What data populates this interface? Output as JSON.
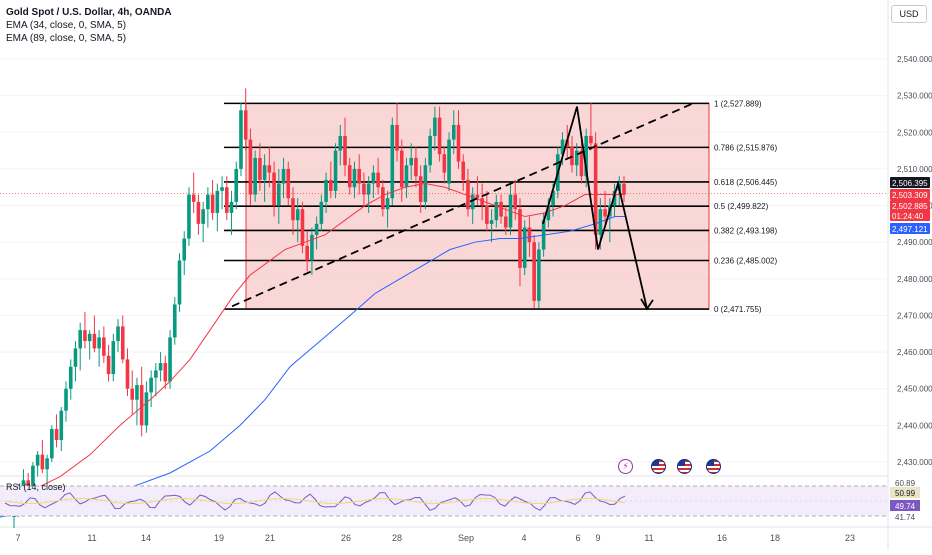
{
  "header": {
    "title": "Gold Spot / U.S. Dollar, 4h, OANDA",
    "ema1": "EMA (34, close, 0, SMA, 5)",
    "ema2": "EMA (89, close, 0, SMA, 5)",
    "currency_button": "USD"
  },
  "rsi": {
    "label": "RSI (14, close)"
  },
  "events": [
    {
      "icon": "lightning-icon",
      "glyph": "⚡"
    },
    {
      "icon": "us-flag-icon"
    },
    {
      "icon": "us-flag-icon"
    },
    {
      "icon": "us-flag-icon"
    }
  ],
  "chart_data": {
    "type": "candlestick",
    "symbol": "Gold Spot / U.S. Dollar",
    "timeframe": "4h",
    "price_axis": {
      "min": 2428,
      "max": 2550,
      "ticks": [
        2430,
        2440,
        2450,
        2460,
        2470,
        2480,
        2490,
        2500,
        2510,
        2520,
        2530,
        2540
      ],
      "tick_labels": [
        "2,430.000",
        "2,440.000",
        "2,450.000",
        "2,460.000",
        "2,470.000",
        "2,480.000",
        "2,490.000",
        "2,500.000",
        "2,510.000",
        "2,520.000",
        "2,530.000",
        "2,540.000"
      ]
    },
    "time_axis": {
      "labels": [
        "7",
        "11",
        "14",
        "19",
        "21",
        "26",
        "28",
        "Sep",
        "4",
        "6",
        "9",
        "11",
        "16",
        "18",
        "23"
      ]
    },
    "price_badges": [
      {
        "value": "2,506.395",
        "color": "#131722"
      },
      {
        "value": "2,503.309",
        "color": "#f23645"
      },
      {
        "value": "2,502.885",
        "color": "#f23645"
      },
      {
        "value": "01:24:40",
        "color": "#f23645"
      },
      {
        "value": "2,497.121",
        "color": "#2962ff"
      }
    ],
    "fibonacci": {
      "levels": [
        {
          "ratio": "1",
          "price": 2527.889,
          "label": "1 (2,527.889)"
        },
        {
          "ratio": "0.786",
          "price": 2515.876,
          "label": "0.786 (2,515.876)"
        },
        {
          "ratio": "0.618",
          "price": 2506.445,
          "label": "0.618 (2,506.445)"
        },
        {
          "ratio": "0.5",
          "price": 2499.822,
          "label": "0.5 (2,499.822)"
        },
        {
          "ratio": "0.382",
          "price": 2493.198,
          "label": "0.382 (2,493.198)"
        },
        {
          "ratio": "0.236",
          "price": 2485.002,
          "label": "0.236 (2,485.002)"
        },
        {
          "ratio": "0",
          "price": 2471.755,
          "label": "0 (2,471.755)"
        }
      ],
      "fill_color": "#f8c9c9",
      "border_color": "#e53935"
    },
    "series": [
      {
        "name": "EMA (34, close, 0, SMA, 5)",
        "color": "#f23645",
        "points": [
          [
            0,
            2420
          ],
          [
            30,
            2422
          ],
          [
            60,
            2426
          ],
          [
            90,
            2432
          ],
          [
            120,
            2440
          ],
          [
            150,
            2447
          ],
          [
            170,
            2452
          ],
          [
            190,
            2458
          ],
          [
            205,
            2464
          ],
          [
            220,
            2470
          ],
          [
            235,
            2476
          ],
          [
            250,
            2481
          ],
          [
            265,
            2484
          ],
          [
            285,
            2488
          ],
          [
            305,
            2490
          ],
          [
            325,
            2492
          ],
          [
            345,
            2496
          ],
          [
            365,
            2500
          ],
          [
            385,
            2503
          ],
          [
            405,
            2505
          ],
          [
            425,
            2506
          ],
          [
            445,
            2505
          ],
          [
            465,
            2503
          ],
          [
            485,
            2501
          ],
          [
            505,
            2499
          ],
          [
            525,
            2497
          ],
          [
            545,
            2498
          ],
          [
            565,
            2500
          ],
          [
            585,
            2503
          ],
          [
            605,
            2503
          ],
          [
            625,
            2503
          ]
        ]
      },
      {
        "name": "EMA (89, close, 0, SMA, 5)",
        "color": "#2962ff",
        "points": [
          [
            0,
            2415
          ],
          [
            60,
            2418
          ],
          [
            120,
            2422
          ],
          [
            170,
            2427
          ],
          [
            210,
            2433
          ],
          [
            240,
            2440
          ],
          [
            265,
            2447
          ],
          [
            290,
            2456
          ],
          [
            320,
            2463
          ],
          [
            350,
            2470
          ],
          [
            375,
            2476
          ],
          [
            400,
            2480
          ],
          [
            425,
            2484
          ],
          [
            450,
            2488
          ],
          [
            475,
            2490
          ],
          [
            500,
            2491
          ],
          [
            520,
            2491
          ],
          [
            545,
            2492
          ],
          [
            570,
            2493
          ],
          [
            595,
            2495
          ],
          [
            615,
            2497
          ],
          [
            625,
            2497
          ]
        ]
      }
    ],
    "ohlc": [
      [
        2415,
        2419,
        2412,
        2418
      ],
      [
        2418,
        2424,
        2415,
        2423
      ],
      [
        2423,
        2428,
        2419,
        2425
      ],
      [
        2425,
        2427,
        2420,
        2421
      ],
      [
        2421,
        2430,
        2419,
        2429
      ],
      [
        2429,
        2433,
        2426,
        2432
      ],
      [
        2432,
        2436,
        2427,
        2428
      ],
      [
        2428,
        2432,
        2424,
        2431
      ],
      [
        2431,
        2440,
        2430,
        2439
      ],
      [
        2439,
        2443,
        2434,
        2436
      ],
      [
        2436,
        2445,
        2433,
        2444
      ],
      [
        2444,
        2452,
        2441,
        2450
      ],
      [
        2450,
        2458,
        2447,
        2456
      ],
      [
        2456,
        2463,
        2452,
        2461
      ],
      [
        2461,
        2468,
        2455,
        2466
      ],
      [
        2466,
        2471,
        2461,
        2463
      ],
      [
        2463,
        2466,
        2458,
        2465
      ],
      [
        2465,
        2470,
        2460,
        2461
      ],
      [
        2461,
        2466,
        2456,
        2464
      ],
      [
        2464,
        2467,
        2457,
        2459
      ],
      [
        2459,
        2462,
        2452,
        2454
      ],
      [
        2454,
        2465,
        2452,
        2463
      ],
      [
        2463,
        2469,
        2460,
        2467
      ],
      [
        2467,
        2470,
        2457,
        2458
      ],
      [
        2458,
        2461,
        2448,
        2450
      ],
      [
        2450,
        2455,
        2443,
        2447
      ],
      [
        2447,
        2453,
        2440,
        2451
      ],
      [
        2451,
        2456,
        2437,
        2440
      ],
      [
        2440,
        2452,
        2438,
        2449
      ],
      [
        2449,
        2455,
        2445,
        2453
      ],
      [
        2453,
        2457,
        2448,
        2455
      ],
      [
        2455,
        2460,
        2452,
        2457
      ],
      [
        2457,
        2459,
        2450,
        2452
      ],
      [
        2452,
        2466,
        2450,
        2464
      ],
      [
        2464,
        2475,
        2462,
        2473
      ],
      [
        2473,
        2487,
        2471,
        2485
      ],
      [
        2485,
        2493,
        2481,
        2491
      ],
      [
        2491,
        2505,
        2489,
        2503
      ],
      [
        2503,
        2509,
        2498,
        2501
      ],
      [
        2501,
        2503,
        2492,
        2495
      ],
      [
        2495,
        2501,
        2490,
        2499
      ],
      [
        2499,
        2505,
        2494,
        2503
      ],
      [
        2503,
        2507,
        2496,
        2498
      ],
      [
        2498,
        2506,
        2493,
        2504
      ],
      [
        2504,
        2508,
        2499,
        2505
      ],
      [
        2505,
        2508,
        2496,
        2498
      ],
      [
        2498,
        2504,
        2492,
        2501
      ],
      [
        2501,
        2512,
        2499,
        2510
      ],
      [
        2510,
        2528,
        2508,
        2526
      ],
      [
        2526,
        2532,
        2515,
        2518
      ],
      [
        2518,
        2521,
        2500,
        2503
      ],
      [
        2503,
        2515,
        2501,
        2513
      ],
      [
        2513,
        2517,
        2504,
        2507
      ],
      [
        2507,
        2514,
        2501,
        2511
      ],
      [
        2511,
        2516,
        2505,
        2509
      ],
      [
        2509,
        2512,
        2497,
        2500
      ],
      [
        2500,
        2510,
        2495,
        2506
      ],
      [
        2506,
        2513,
        2502,
        2510
      ],
      [
        2510,
        2512,
        2500,
        2502
      ],
      [
        2502,
        2505,
        2492,
        2496
      ],
      [
        2496,
        2502,
        2490,
        2499
      ],
      [
        2499,
        2501,
        2487,
        2489
      ],
      [
        2489,
        2493,
        2482,
        2485
      ],
      [
        2485,
        2494,
        2481,
        2492
      ],
      [
        2492,
        2497,
        2488,
        2495
      ],
      [
        2495,
        2503,
        2493,
        2501
      ],
      [
        2501,
        2509,
        2498,
        2507
      ],
      [
        2507,
        2512,
        2502,
        2504
      ],
      [
        2504,
        2517,
        2502,
        2515
      ],
      [
        2515,
        2522,
        2511,
        2519
      ],
      [
        2519,
        2524,
        2508,
        2511
      ],
      [
        2511,
        2513,
        2503,
        2505
      ],
      [
        2505,
        2512,
        2502,
        2510
      ],
      [
        2510,
        2514,
        2503,
        2506
      ],
      [
        2506,
        2509,
        2500,
        2503
      ],
      [
        2503,
        2508,
        2498,
        2506
      ],
      [
        2506,
        2511,
        2502,
        2509
      ],
      [
        2509,
        2513,
        2503,
        2505
      ],
      [
        2505,
        2507,
        2497,
        2499
      ],
      [
        2499,
        2504,
        2494,
        2502
      ],
      [
        2502,
        2524,
        2500,
        2522
      ],
      [
        2522,
        2528,
        2512,
        2515
      ],
      [
        2515,
        2518,
        2501,
        2505
      ],
      [
        2505,
        2513,
        2502,
        2511
      ],
      [
        2511,
        2517,
        2507,
        2513
      ],
      [
        2513,
        2516,
        2505,
        2508
      ],
      [
        2508,
        2511,
        2498,
        2501
      ],
      [
        2501,
        2513,
        2499,
        2511
      ],
      [
        2511,
        2521,
        2509,
        2519
      ],
      [
        2519,
        2527,
        2515,
        2524
      ],
      [
        2524,
        2527,
        2512,
        2514
      ],
      [
        2514,
        2516,
        2506,
        2509
      ],
      [
        2506,
        2520,
        2504,
        2518
      ],
      [
        2518,
        2526,
        2514,
        2522
      ],
      [
        2522,
        2526,
        2510,
        2512
      ],
      [
        2512,
        2514,
        2504,
        2507
      ],
      [
        2507,
        2510,
        2497,
        2499
      ],
      [
        2499,
        2505,
        2495,
        2503
      ],
      [
        2503,
        2508,
        2500,
        2502
      ],
      [
        2502,
        2506,
        2496,
        2500
      ],
      [
        2500,
        2504,
        2493,
        2495
      ],
      [
        2495,
        2499,
        2490,
        2496
      ],
      [
        2496,
        2503,
        2494,
        2501
      ],
      [
        2501,
        2503,
        2495,
        2497
      ],
      [
        2497,
        2500,
        2492,
        2494
      ],
      [
        2494,
        2506,
        2492,
        2503
      ],
      [
        2503,
        2507,
        2496,
        2499
      ],
      [
        2499,
        2502,
        2478,
        2483
      ],
      [
        2483,
        2496,
        2481,
        2494
      ],
      [
        2494,
        2497,
        2486,
        2490
      ],
      [
        2490,
        2492,
        2472,
        2474
      ],
      [
        2474,
        2490,
        2472,
        2488
      ],
      [
        2488,
        2498,
        2486,
        2496
      ],
      [
        2496,
        2502,
        2494,
        2500
      ],
      [
        2500,
        2506,
        2497,
        2504
      ],
      [
        2504,
        2516,
        2502,
        2514
      ],
      [
        2514,
        2520,
        2511,
        2518
      ],
      [
        2518,
        2522,
        2513,
        2516
      ],
      [
        2516,
        2519,
        2509,
        2511
      ],
      [
        2511,
        2517,
        2508,
        2515
      ],
      [
        2515,
        2519,
        2506,
        2508
      ],
      [
        2508,
        2521,
        2505,
        2519
      ],
      [
        2519,
        2528,
        2515,
        2517
      ],
      [
        2517,
        2520,
        2488,
        2492
      ],
      [
        2492,
        2502,
        2488,
        2499
      ],
      [
        2499,
        2504,
        2494,
        2497
      ],
      [
        2497,
        2502,
        2490,
        2500
      ],
      [
        2500,
        2506,
        2497,
        2504
      ],
      [
        2504,
        2508,
        2500,
        2506
      ],
      [
        2506,
        2508,
        2501,
        2503
      ]
    ]
  }
}
